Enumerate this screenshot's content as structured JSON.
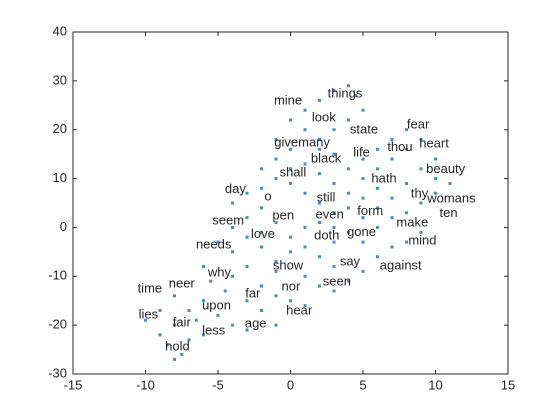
{
  "chart_data": {
    "type": "scatter",
    "color": "#3d8fd1",
    "xlim": [
      -15,
      15
    ],
    "ylim": [
      -30,
      40
    ],
    "xticks": [
      -15,
      -10,
      -5,
      0,
      5,
      10,
      15
    ],
    "yticks": [
      -30,
      -20,
      -10,
      0,
      10,
      20,
      30,
      40
    ],
    "x": [
      -8,
      -7.5,
      -8.5,
      -7,
      -9,
      -6,
      -8,
      -6.5,
      -10,
      -9,
      -5,
      -7,
      -4,
      -3,
      -6,
      -8,
      -4.5,
      -5.5,
      -3,
      -2,
      -1,
      -4,
      -3,
      -6,
      -2,
      -1,
      0,
      1,
      2,
      1,
      3,
      4,
      5,
      6,
      7,
      8,
      9,
      3,
      2,
      0,
      -1,
      -2,
      -3,
      -4,
      -5,
      -4,
      -3,
      -2,
      -1,
      0,
      1,
      2,
      3,
      4,
      5,
      6,
      7,
      8,
      9,
      10,
      11,
      10,
      8,
      7,
      6,
      5,
      4,
      3,
      2,
      1,
      0,
      -1,
      -2,
      -3,
      -4,
      -2,
      -1,
      0,
      1,
      2,
      3,
      4,
      5,
      6,
      7,
      8,
      9,
      8,
      7,
      6,
      5,
      4,
      3,
      2,
      1,
      0,
      1,
      2,
      3,
      4,
      4.5,
      5,
      4,
      3,
      2,
      -1,
      0,
      5,
      6,
      3,
      1,
      -1,
      -2,
      9,
      10
    ],
    "y": [
      -27,
      -26,
      -24,
      -23,
      -22,
      -22,
      -20,
      -19,
      -19,
      -17,
      -18,
      -17,
      -20,
      -21,
      -15,
      -14,
      -13,
      -11,
      -15,
      -17,
      -20,
      -10,
      -8,
      -8,
      -12,
      -14,
      -15,
      -16,
      -12,
      -10,
      -13,
      -11,
      -9,
      -6,
      -4,
      -3,
      -1,
      -8,
      -6,
      -5,
      -7,
      -4,
      -2,
      -5,
      -3,
      0,
      2,
      4,
      1,
      -2,
      0,
      1,
      -3,
      -1,
      -3,
      0,
      2,
      3,
      5,
      7,
      9,
      10,
      9,
      6,
      4,
      2,
      4,
      3,
      5,
      7,
      9,
      10,
      8,
      7,
      5,
      12,
      14,
      16,
      13,
      11,
      9,
      7,
      10,
      12,
      14,
      16,
      18,
      20,
      18,
      16,
      14,
      12,
      15,
      18,
      20,
      22,
      24,
      26,
      28,
      29,
      27,
      24,
      22,
      20,
      16,
      18,
      12,
      6,
      8,
      0,
      -4,
      -9,
      -1,
      12,
      14
    ],
    "annotations": [
      {
        "text": "mine",
        "x": -0.17,
        "y": 25.9
      },
      {
        "text": "things",
        "x": 3.76,
        "y": 27.3
      },
      {
        "text": "look",
        "x": 2.3,
        "y": 22.4
      },
      {
        "text": "state",
        "x": 5.07,
        "y": 19.9
      },
      {
        "text": "fear",
        "x": 8.8,
        "y": 21
      },
      {
        "text": "heart",
        "x": 9.9,
        "y": 17.1
      },
      {
        "text": "givemany",
        "x": 0.8,
        "y": 17.3
      },
      {
        "text": "thou",
        "x": 7.55,
        "y": 16.3
      },
      {
        "text": "life",
        "x": 4.9,
        "y": 15.2
      },
      {
        "text": "black",
        "x": 2.45,
        "y": 14
      },
      {
        "text": "beauty",
        "x": 10.7,
        "y": 11.8
      },
      {
        "text": "shall",
        "x": 0.17,
        "y": 11.1
      },
      {
        "text": "hath",
        "x": 6.45,
        "y": 9.9
      },
      {
        "text": "day",
        "x": -3.8,
        "y": 7.7
      },
      {
        "text": "thy",
        "x": 8.9,
        "y": 6.8
      },
      {
        "text": "womans",
        "x": 11.1,
        "y": 5.8
      },
      {
        "text": "o",
        "x": -1.55,
        "y": 6.2
      },
      {
        "text": "still",
        "x": 2.45,
        "y": 6
      },
      {
        "text": "form",
        "x": 5.5,
        "y": 3.2
      },
      {
        "text": "ten",
        "x": 10.9,
        "y": 2.8
      },
      {
        "text": "pen",
        "x": -0.5,
        "y": 2.3
      },
      {
        "text": "even",
        "x": 2.7,
        "y": 2.5
      },
      {
        "text": "seem",
        "x": -4.3,
        "y": 1.3
      },
      {
        "text": "make",
        "x": 8.4,
        "y": 0.9
      },
      {
        "text": "love",
        "x": -1.9,
        "y": -1.5
      },
      {
        "text": "doth",
        "x": 2.5,
        "y": -1.75
      },
      {
        "text": "gone",
        "x": 4.9,
        "y": -1.1
      },
      {
        "text": "mind",
        "x": 9.1,
        "y": -2.8
      },
      {
        "text": "needs",
        "x": -5.3,
        "y": -3.6
      },
      {
        "text": "say",
        "x": 4.1,
        "y": -7.1
      },
      {
        "text": "show",
        "x": -0.17,
        "y": -7.9
      },
      {
        "text": "against",
        "x": 7.6,
        "y": -7.9
      },
      {
        "text": "why",
        "x": -4.9,
        "y": -9.3
      },
      {
        "text": "neer",
        "x": -7.5,
        "y": -11.6
      },
      {
        "text": "time",
        "x": -9.7,
        "y": -12.6
      },
      {
        "text": "seen",
        "x": 3.2,
        "y": -11.2
      },
      {
        "text": "nor",
        "x": 0.03,
        "y": -12.2
      },
      {
        "text": "far",
        "x": -2.6,
        "y": -13.6
      },
      {
        "text": "upon",
        "x": -5.1,
        "y": -16.1
      },
      {
        "text": "lies",
        "x": -9.8,
        "y": -17.9
      },
      {
        "text": "hear",
        "x": 0.6,
        "y": -17.1
      },
      {
        "text": "fair",
        "x": -7.5,
        "y": -19.6
      },
      {
        "text": "age",
        "x": -2.4,
        "y": -19.8
      },
      {
        "text": "less",
        "x": -5.3,
        "y": -21.2
      },
      {
        "text": "hold",
        "x": -7.8,
        "y": -24.5
      }
    ]
  }
}
